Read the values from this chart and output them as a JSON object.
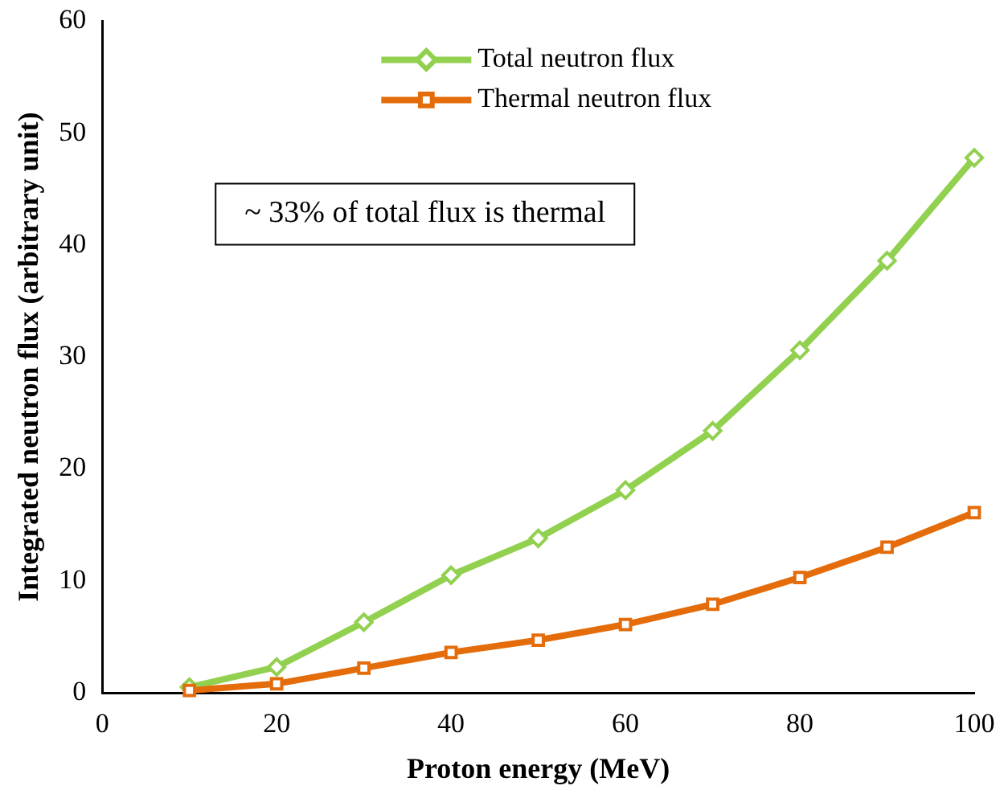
{
  "chart_data": {
    "type": "line",
    "xlabel": "Proton energy (MeV)",
    "ylabel": "Integrated neutron flux (arbitrary unit)",
    "x": [
      10,
      20,
      30,
      40,
      50,
      60,
      70,
      80,
      90,
      100
    ],
    "series": [
      {
        "name": "Total neutron flux",
        "color": "#92d050",
        "marker": "diamond",
        "values": [
          0.5,
          2.3,
          6.3,
          10.5,
          13.8,
          18.1,
          23.4,
          30.6,
          38.6,
          47.8
        ]
      },
      {
        "name": "Thermal neutron flux",
        "color": "#e46c0a",
        "marker": "square",
        "values": [
          0.2,
          0.8,
          2.2,
          3.6,
          4.7,
          6.1,
          7.9,
          10.3,
          13.0,
          16.1
        ]
      }
    ],
    "xlim": [
      0,
      100
    ],
    "xticks": [
      0,
      20,
      40,
      60,
      80,
      100
    ],
    "ylim": [
      0,
      60
    ],
    "yticks": [
      0,
      10,
      20,
      30,
      40,
      50,
      60
    ],
    "annotations": [
      "~ 33% of total flux is thermal"
    ],
    "grid": false,
    "legend": "top",
    "line_style": "solid"
  }
}
